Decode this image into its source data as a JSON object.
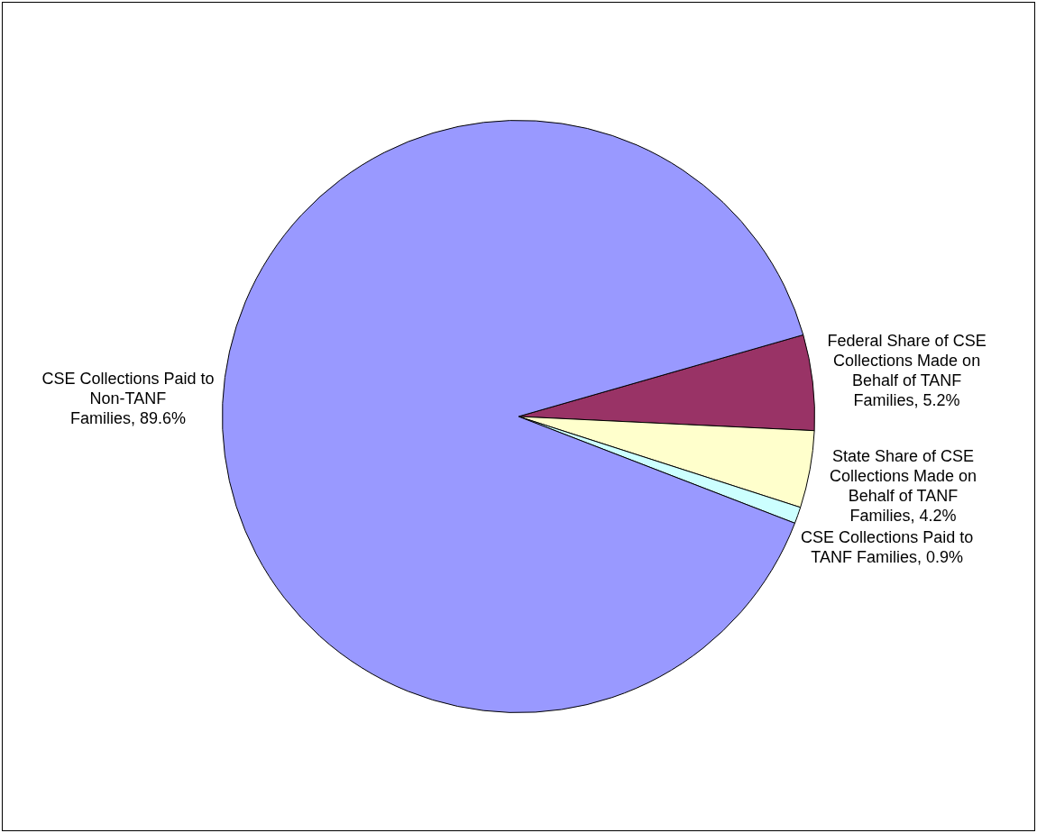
{
  "chart_data": {
    "type": "pie",
    "categories": [
      "Federal Share of CSE Collections Made on Behalf of TANF Families",
      "State Share of CSE Collections Made on Behalf of TANF Families",
      "CSE Collections Paid to TANF Families",
      "CSE Collections Paid to Non-TANF Families"
    ],
    "values": [
      5.2,
      4.2,
      0.9,
      89.6
    ],
    "value_labels": [
      "5.2%",
      "4.2%",
      "0.9%",
      "89.6%"
    ],
    "colors": [
      "#993366",
      "#ffffcc",
      "#ccffff",
      "#9999ff"
    ],
    "legend": false
  }
}
